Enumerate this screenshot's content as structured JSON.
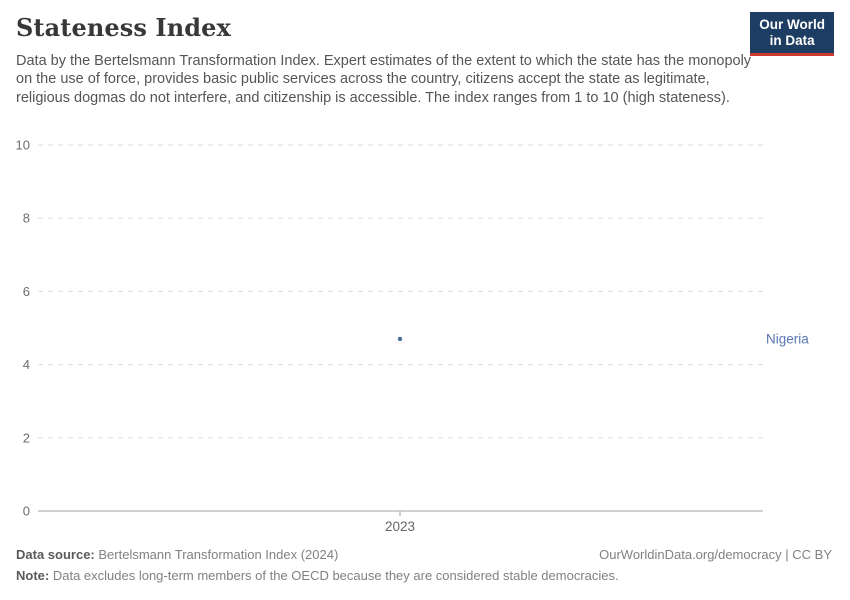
{
  "header": {
    "title": "Stateness Index",
    "subtitle": "Data by the Bertelsmann Transformation Index. Expert estimates of the extent to which the state has the monopoly on the use of force, provides basic public services across the country, citizens accept the state as legitimate, religious dogmas do not interfere, and citizenship is accessible. The index ranges from 1 to 10 (high stateness)."
  },
  "logo": {
    "line1": "Our World",
    "line2": "in Data",
    "bg_color": "#1d3d63",
    "accent_color": "#cc392f"
  },
  "chart_data": {
    "type": "scatter",
    "title": "Stateness Index",
    "xlabel": "",
    "ylabel": "",
    "x": [
      2023
    ],
    "xticks": [
      "2023"
    ],
    "yticks": [
      0,
      2,
      4,
      6,
      8,
      10
    ],
    "ylim": [
      0,
      10
    ],
    "grid": "horizontal-dashed",
    "legend_position": "right-inline-label",
    "series": [
      {
        "name": "Nigeria",
        "color": "#4c6a9c",
        "label_color": "#5876b1",
        "values": [
          4.7
        ]
      }
    ],
    "colors": {
      "gridline": "#dedede",
      "axis_line": "#a3a3a3",
      "tick_label": "#6e6e6e"
    }
  },
  "footer": {
    "source_label": "Data source:",
    "source_value": "Bertelsmann Transformation Index (2024)",
    "rights": "OurWorldinData.org/democracy | CC BY",
    "note_label": "Note:",
    "note_value": "Data excludes long-term members of the OECD because they are considered stable democracies."
  }
}
